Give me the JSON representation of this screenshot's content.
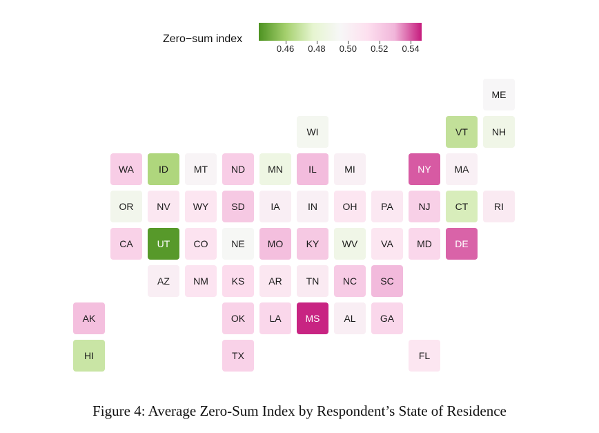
{
  "legend": {
    "title": "Zero−sum index",
    "ticks": [
      0.46,
      0.48,
      0.5,
      0.52,
      0.54
    ],
    "tick_labels": [
      "0.46",
      "0.48",
      "0.50",
      "0.52",
      "0.54"
    ],
    "min": 0.443,
    "max": 0.547
  },
  "caption": "Figure 4: Average Zero-Sum Index by Respondent’s State of Residence",
  "chart_data": {
    "type": "heatmap",
    "value_label": "Zero−sum index",
    "colors": [
      "#4d9221",
      "#a5d06e",
      "#e6f5d0",
      "#f7f7f7",
      "#fde0ef",
      "#f1b6da",
      "#c51b7d"
    ],
    "states": [
      {
        "abbr": "ME",
        "row": 0,
        "col": 11,
        "value": 0.496
      },
      {
        "abbr": "WI",
        "row": 1,
        "col": 6,
        "value": 0.492
      },
      {
        "abbr": "VT",
        "row": 1,
        "col": 10,
        "value": 0.468
      },
      {
        "abbr": "NH",
        "row": 1,
        "col": 11,
        "value": 0.488
      },
      {
        "abbr": "WA",
        "row": 2,
        "col": 1,
        "value": 0.52
      },
      {
        "abbr": "ID",
        "row": 2,
        "col": 2,
        "value": 0.463
      },
      {
        "abbr": "MT",
        "row": 2,
        "col": 3,
        "value": 0.497
      },
      {
        "abbr": "ND",
        "row": 2,
        "col": 4,
        "value": 0.52
      },
      {
        "abbr": "MN",
        "row": 2,
        "col": 5,
        "value": 0.486
      },
      {
        "abbr": "IL",
        "row": 2,
        "col": 6,
        "value": 0.527
      },
      {
        "abbr": "MI",
        "row": 2,
        "col": 7,
        "value": 0.5
      },
      {
        "abbr": "NY",
        "row": 2,
        "col": 9,
        "value": 0.54
      },
      {
        "abbr": "MA",
        "row": 2,
        "col": 10,
        "value": 0.5
      },
      {
        "abbr": "OR",
        "row": 3,
        "col": 1,
        "value": 0.49
      },
      {
        "abbr": "NV",
        "row": 3,
        "col": 2,
        "value": 0.507
      },
      {
        "abbr": "WY",
        "row": 3,
        "col": 3,
        "value": 0.508
      },
      {
        "abbr": "SD",
        "row": 3,
        "col": 4,
        "value": 0.522
      },
      {
        "abbr": "IA",
        "row": 3,
        "col": 5,
        "value": 0.502
      },
      {
        "abbr": "IN",
        "row": 3,
        "col": 6,
        "value": 0.5
      },
      {
        "abbr": "OH",
        "row": 3,
        "col": 7,
        "value": 0.508
      },
      {
        "abbr": "PA",
        "row": 3,
        "col": 8,
        "value": 0.506
      },
      {
        "abbr": "NJ",
        "row": 3,
        "col": 9,
        "value": 0.519
      },
      {
        "abbr": "CT",
        "row": 3,
        "col": 10,
        "value": 0.474
      },
      {
        "abbr": "RI",
        "row": 3,
        "col": 11,
        "value": 0.505
      },
      {
        "abbr": "CA",
        "row": 4,
        "col": 1,
        "value": 0.518
      },
      {
        "abbr": "UT",
        "row": 4,
        "col": 2,
        "value": 0.445
      },
      {
        "abbr": "CO",
        "row": 4,
        "col": 3,
        "value": 0.51
      },
      {
        "abbr": "NE",
        "row": 4,
        "col": 4,
        "value": 0.494
      },
      {
        "abbr": "MO",
        "row": 4,
        "col": 5,
        "value": 0.526
      },
      {
        "abbr": "KY",
        "row": 4,
        "col": 6,
        "value": 0.522
      },
      {
        "abbr": "WV",
        "row": 4,
        "col": 7,
        "value": 0.488
      },
      {
        "abbr": "VA",
        "row": 4,
        "col": 8,
        "value": 0.508
      },
      {
        "abbr": "MD",
        "row": 4,
        "col": 9,
        "value": 0.516
      },
      {
        "abbr": "DE",
        "row": 4,
        "col": 10,
        "value": 0.539
      },
      {
        "abbr": "AZ",
        "row": 5,
        "col": 2,
        "value": 0.502
      },
      {
        "abbr": "NM",
        "row": 5,
        "col": 3,
        "value": 0.509
      },
      {
        "abbr": "KS",
        "row": 5,
        "col": 4,
        "value": 0.514
      },
      {
        "abbr": "AR",
        "row": 5,
        "col": 5,
        "value": 0.507
      },
      {
        "abbr": "TN",
        "row": 5,
        "col": 6,
        "value": 0.505
      },
      {
        "abbr": "NC",
        "row": 5,
        "col": 7,
        "value": 0.521
      },
      {
        "abbr": "SC",
        "row": 5,
        "col": 8,
        "value": 0.528
      },
      {
        "abbr": "AK",
        "row": 6,
        "col": 0,
        "value": 0.526
      },
      {
        "abbr": "OK",
        "row": 6,
        "col": 4,
        "value": 0.518
      },
      {
        "abbr": "LA",
        "row": 6,
        "col": 5,
        "value": 0.516
      },
      {
        "abbr": "MS",
        "row": 6,
        "col": 6,
        "value": 0.546
      },
      {
        "abbr": "AL",
        "row": 6,
        "col": 7,
        "value": 0.502
      },
      {
        "abbr": "GA",
        "row": 6,
        "col": 8,
        "value": 0.516
      },
      {
        "abbr": "HI",
        "row": 7,
        "col": 0,
        "value": 0.47
      },
      {
        "abbr": "TX",
        "row": 7,
        "col": 4,
        "value": 0.518
      },
      {
        "abbr": "FL",
        "row": 7,
        "col": 9,
        "value": 0.508
      }
    ]
  }
}
